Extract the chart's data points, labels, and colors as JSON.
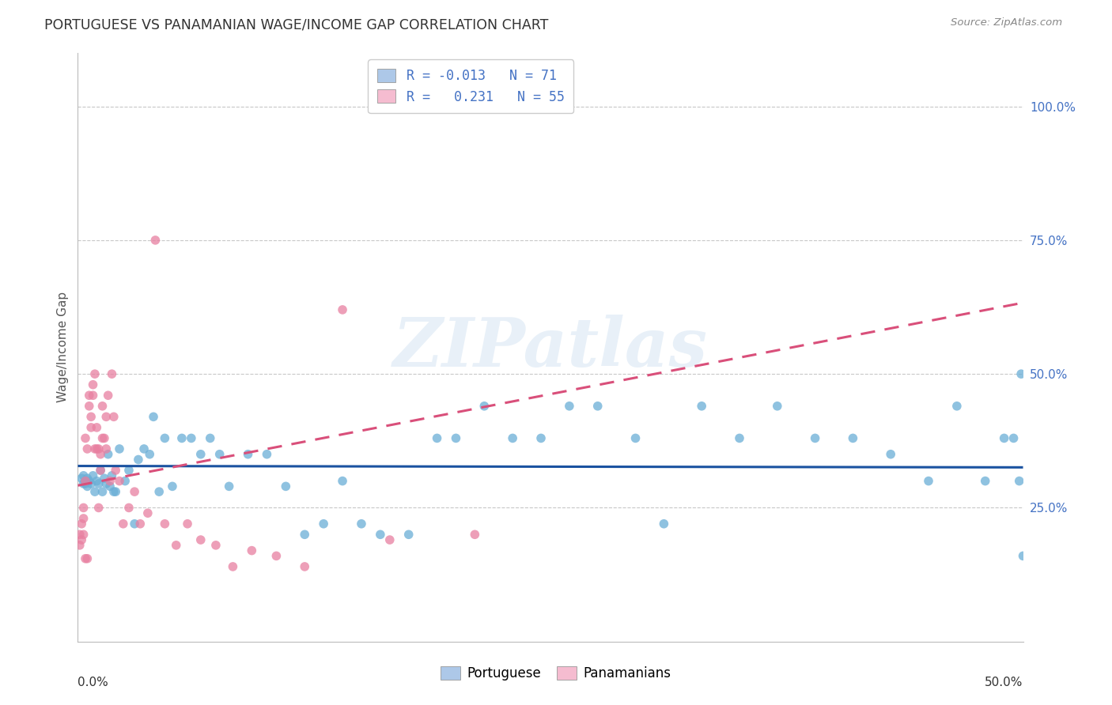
{
  "title": "PORTUGUESE VS PANAMANIAN WAGE/INCOME GAP CORRELATION CHART",
  "source": "Source: ZipAtlas.com",
  "ylabel": "Wage/Income Gap",
  "ytick_labels": [
    "25.0%",
    "50.0%",
    "75.0%",
    "100.0%"
  ],
  "ytick_vals": [
    0.25,
    0.5,
    0.75,
    1.0
  ],
  "legend_entries": [
    {
      "label_r": "-0.013",
      "label_n": "71",
      "color": "#adc8e8"
    },
    {
      "label_r": " 0.231",
      "label_n": "55",
      "color": "#f5bcd0"
    }
  ],
  "watermark": "ZIPatlas",
  "blue_color": "#6aaed6",
  "pink_color": "#e87fa0",
  "blue_line_color": "#1a52a0",
  "pink_line_color": "#d94f7a",
  "grid_color": "#c8c8c8",
  "background_color": "#ffffff",
  "xmin": 0.0,
  "xmax": 0.5,
  "ymin": 0.0,
  "ymax": 1.1,
  "blue_scatter_x": [
    0.002,
    0.003,
    0.003,
    0.004,
    0.004,
    0.005,
    0.005,
    0.006,
    0.007,
    0.008,
    0.009,
    0.01,
    0.011,
    0.012,
    0.013,
    0.014,
    0.015,
    0.016,
    0.017,
    0.018,
    0.019,
    0.02,
    0.022,
    0.025,
    0.027,
    0.03,
    0.032,
    0.035,
    0.038,
    0.04,
    0.043,
    0.046,
    0.05,
    0.055,
    0.06,
    0.065,
    0.07,
    0.075,
    0.08,
    0.09,
    0.1,
    0.11,
    0.12,
    0.13,
    0.14,
    0.15,
    0.16,
    0.175,
    0.19,
    0.2,
    0.215,
    0.23,
    0.245,
    0.26,
    0.275,
    0.295,
    0.31,
    0.33,
    0.35,
    0.37,
    0.39,
    0.41,
    0.43,
    0.45,
    0.465,
    0.48,
    0.49,
    0.495,
    0.498,
    0.499,
    0.5
  ],
  "blue_scatter_y": [
    0.305,
    0.295,
    0.31,
    0.3,
    0.295,
    0.305,
    0.29,
    0.3,
    0.295,
    0.31,
    0.28,
    0.3,
    0.295,
    0.32,
    0.28,
    0.305,
    0.295,
    0.35,
    0.29,
    0.31,
    0.28,
    0.28,
    0.36,
    0.3,
    0.32,
    0.22,
    0.34,
    0.36,
    0.35,
    0.42,
    0.28,
    0.38,
    0.29,
    0.38,
    0.38,
    0.35,
    0.38,
    0.35,
    0.29,
    0.35,
    0.35,
    0.29,
    0.2,
    0.22,
    0.3,
    0.22,
    0.2,
    0.2,
    0.38,
    0.38,
    0.44,
    0.38,
    0.38,
    0.44,
    0.44,
    0.38,
    0.22,
    0.44,
    0.38,
    0.44,
    0.38,
    0.38,
    0.35,
    0.3,
    0.44,
    0.3,
    0.38,
    0.38,
    0.3,
    0.5,
    0.16
  ],
  "pink_scatter_x": [
    0.001,
    0.001,
    0.002,
    0.002,
    0.003,
    0.003,
    0.003,
    0.004,
    0.004,
    0.004,
    0.005,
    0.005,
    0.006,
    0.006,
    0.007,
    0.007,
    0.008,
    0.008,
    0.009,
    0.009,
    0.01,
    0.01,
    0.011,
    0.011,
    0.012,
    0.012,
    0.013,
    0.013,
    0.014,
    0.015,
    0.015,
    0.016,
    0.017,
    0.018,
    0.019,
    0.02,
    0.022,
    0.024,
    0.027,
    0.03,
    0.033,
    0.037,
    0.041,
    0.046,
    0.052,
    0.058,
    0.065,
    0.073,
    0.082,
    0.092,
    0.105,
    0.12,
    0.14,
    0.165,
    0.21
  ],
  "pink_scatter_y": [
    0.2,
    0.18,
    0.22,
    0.19,
    0.25,
    0.2,
    0.23,
    0.3,
    0.38,
    0.155,
    0.36,
    0.155,
    0.44,
    0.46,
    0.4,
    0.42,
    0.46,
    0.48,
    0.5,
    0.36,
    0.4,
    0.36,
    0.25,
    0.36,
    0.32,
    0.35,
    0.38,
    0.44,
    0.38,
    0.42,
    0.36,
    0.46,
    0.3,
    0.5,
    0.42,
    0.32,
    0.3,
    0.22,
    0.25,
    0.28,
    0.22,
    0.24,
    0.75,
    0.22,
    0.18,
    0.22,
    0.19,
    0.18,
    0.14,
    0.17,
    0.16,
    0.14,
    0.62,
    0.19,
    0.2
  ]
}
